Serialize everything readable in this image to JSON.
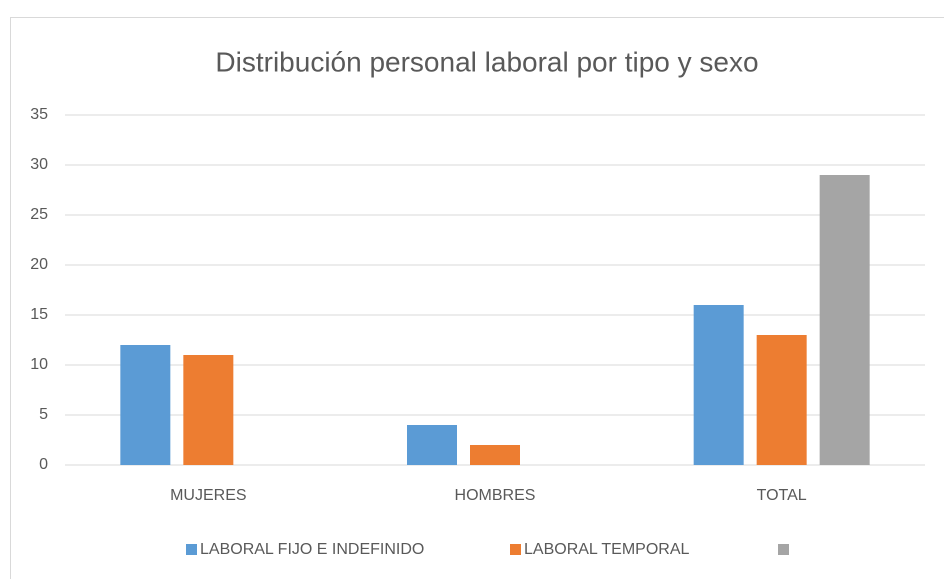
{
  "chart_data": {
    "type": "bar",
    "title": "Distribución personal laboral por tipo y sexo",
    "categories": [
      "MUJERES",
      "HOMBRES",
      "TOTAL"
    ],
    "series": [
      {
        "name": "LABORAL FIJO E INDEFINIDO",
        "color": "#5b9bd5",
        "values": [
          12,
          4,
          16
        ]
      },
      {
        "name": "LABORAL TEMPORAL",
        "color": "#ed7d31",
        "values": [
          11,
          2,
          13
        ]
      },
      {
        "color": "#a5a5a5",
        "values": [
          null,
          null,
          29
        ]
      }
    ],
    "ylim": [
      0,
      35
    ],
    "yticks": [
      0,
      5,
      10,
      15,
      20,
      25,
      30,
      35
    ],
    "grid": true,
    "legend": "bottom"
  }
}
